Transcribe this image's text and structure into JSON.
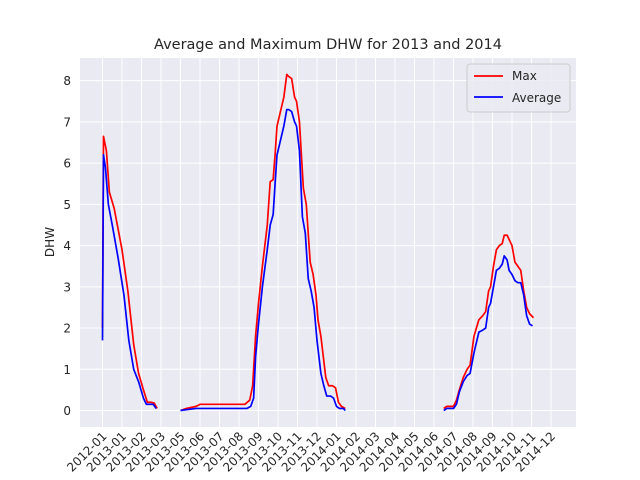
{
  "chart_data": {
    "type": "line",
    "title": "Average and Maximum DHW for 2013 and 2014",
    "xlabel": "",
    "ylabel": "DHW",
    "ylim": [
      -0.4,
      8.55
    ],
    "yticks": [
      0,
      1,
      2,
      3,
      4,
      5,
      6,
      7,
      8
    ],
    "grid": true,
    "legend_position": "top-right",
    "xtick_labels": [
      "2012-01",
      "2013-01",
      "2013-02",
      "2013-03",
      "2013-05",
      "2013-06",
      "2013-07",
      "2013-08",
      "2013-09",
      "2013-10",
      "2013-11",
      "2013-12",
      "2014-01",
      "2014-02",
      "2014-03",
      "2014-04",
      "2014-05",
      "2014-06",
      "2014-07",
      "2014-08",
      "2014-09",
      "2014-10",
      "2014-11",
      "2014-12"
    ],
    "series": [
      {
        "name": "Max",
        "color": "#ff0000",
        "segments": [
          [
            [
              0,
              2.0
            ],
            [
              0.05,
              6.65
            ],
            [
              0.2,
              6.3
            ],
            [
              0.35,
              5.3
            ],
            [
              0.6,
              4.9
            ],
            [
              1.0,
              3.9
            ],
            [
              1.3,
              2.9
            ],
            [
              1.6,
              1.6
            ],
            [
              1.85,
              0.9
            ],
            [
              2.1,
              0.5
            ],
            [
              2.3,
              0.2
            ],
            [
              2.5,
              0.2
            ],
            [
              2.65,
              0.18
            ],
            [
              2.8,
              0.05
            ]
          ],
          [
            [
              4.0,
              0.0
            ],
            [
              4.3,
              0.05
            ],
            [
              4.8,
              0.1
            ],
            [
              5.0,
              0.15
            ],
            [
              5.5,
              0.15
            ],
            [
              6.0,
              0.15
            ],
            [
              6.5,
              0.15
            ],
            [
              7.0,
              0.15
            ],
            [
              7.3,
              0.15
            ],
            [
              7.55,
              0.25
            ],
            [
              7.7,
              0.6
            ],
            [
              7.85,
              1.8
            ],
            [
              8.0,
              2.6
            ],
            [
              8.2,
              3.5
            ],
            [
              8.45,
              4.5
            ],
            [
              8.6,
              5.55
            ],
            [
              8.75,
              5.6
            ],
            [
              8.85,
              6.2
            ],
            [
              8.95,
              6.9
            ],
            [
              9.15,
              7.3
            ],
            [
              9.3,
              7.6
            ],
            [
              9.45,
              8.15
            ],
            [
              9.55,
              8.1
            ],
            [
              9.7,
              8.05
            ],
            [
              9.85,
              7.6
            ],
            [
              9.95,
              7.5
            ],
            [
              10.1,
              7.0
            ],
            [
              10.3,
              5.4
            ],
            [
              10.45,
              5.0
            ],
            [
              10.65,
              3.6
            ],
            [
              10.8,
              3.3
            ],
            [
              10.95,
              2.8
            ],
            [
              11.05,
              2.2
            ],
            [
              11.2,
              1.8
            ],
            [
              11.35,
              1.2
            ],
            [
              11.45,
              0.8
            ],
            [
              11.6,
              0.6
            ],
            [
              11.8,
              0.6
            ],
            [
              11.95,
              0.55
            ],
            [
              12.1,
              0.2
            ],
            [
              12.25,
              0.1
            ],
            [
              12.45,
              0.05
            ]
          ],
          [
            [
              17.5,
              0.05
            ],
            [
              17.65,
              0.1
            ],
            [
              18.0,
              0.1
            ],
            [
              18.15,
              0.25
            ],
            [
              18.3,
              0.5
            ],
            [
              18.5,
              0.8
            ],
            [
              18.7,
              1.0
            ],
            [
              18.85,
              1.1
            ],
            [
              19.05,
              1.8
            ],
            [
              19.3,
              2.2
            ],
            [
              19.5,
              2.3
            ],
            [
              19.65,
              2.4
            ],
            [
              19.8,
              2.9
            ],
            [
              19.9,
              3.0
            ],
            [
              20.05,
              3.5
            ],
            [
              20.2,
              3.9
            ],
            [
              20.35,
              4.0
            ],
            [
              20.5,
              4.05
            ],
            [
              20.6,
              4.25
            ],
            [
              20.75,
              4.25
            ],
            [
              20.85,
              4.15
            ],
            [
              21.0,
              4.0
            ],
            [
              21.15,
              3.6
            ],
            [
              21.3,
              3.5
            ],
            [
              21.45,
              3.4
            ],
            [
              21.6,
              2.9
            ],
            [
              21.75,
              2.5
            ],
            [
              21.9,
              2.35
            ],
            [
              22.1,
              2.25
            ]
          ]
        ]
      },
      {
        "name": "Average",
        "color": "#0000ff",
        "segments": [
          [
            [
              0,
              1.7
            ],
            [
              0.05,
              6.2
            ],
            [
              0.15,
              5.9
            ],
            [
              0.3,
              5.0
            ],
            [
              0.5,
              4.5
            ],
            [
              0.8,
              3.7
            ],
            [
              1.1,
              2.8
            ],
            [
              1.35,
              1.7
            ],
            [
              1.6,
              1.0
            ],
            [
              1.85,
              0.7
            ],
            [
              2.1,
              0.3
            ],
            [
              2.25,
              0.15
            ],
            [
              2.45,
              0.15
            ],
            [
              2.6,
              0.15
            ],
            [
              2.75,
              0.05
            ]
          ],
          [
            [
              4.0,
              0.0
            ],
            [
              4.3,
              0.02
            ],
            [
              4.8,
              0.05
            ],
            [
              5.0,
              0.05
            ],
            [
              5.5,
              0.05
            ],
            [
              6.0,
              0.05
            ],
            [
              6.5,
              0.05
            ],
            [
              7.0,
              0.05
            ],
            [
              7.4,
              0.05
            ],
            [
              7.6,
              0.1
            ],
            [
              7.75,
              0.3
            ],
            [
              7.85,
              1.3
            ],
            [
              8.0,
              2.1
            ],
            [
              8.2,
              3.0
            ],
            [
              8.45,
              3.9
            ],
            [
              8.6,
              4.5
            ],
            [
              8.75,
              4.75
            ],
            [
              8.85,
              5.5
            ],
            [
              8.95,
              6.2
            ],
            [
              9.15,
              6.6
            ],
            [
              9.3,
              6.9
            ],
            [
              9.45,
              7.3
            ],
            [
              9.55,
              7.3
            ],
            [
              9.7,
              7.25
            ],
            [
              9.85,
              7.0
            ],
            [
              9.95,
              6.9
            ],
            [
              10.1,
              6.3
            ],
            [
              10.25,
              4.7
            ],
            [
              10.4,
              4.3
            ],
            [
              10.55,
              3.2
            ],
            [
              10.7,
              2.9
            ],
            [
              10.85,
              2.5
            ],
            [
              11.0,
              1.7
            ],
            [
              11.1,
              1.3
            ],
            [
              11.2,
              0.9
            ],
            [
              11.35,
              0.6
            ],
            [
              11.5,
              0.35
            ],
            [
              11.7,
              0.35
            ],
            [
              11.85,
              0.3
            ],
            [
              12.0,
              0.1
            ],
            [
              12.15,
              0.05
            ],
            [
              12.35,
              0.05
            ],
            [
              12.45,
              0.0
            ]
          ],
          [
            [
              17.5,
              0.0
            ],
            [
              17.65,
              0.05
            ],
            [
              18.0,
              0.05
            ],
            [
              18.15,
              0.15
            ],
            [
              18.3,
              0.45
            ],
            [
              18.5,
              0.7
            ],
            [
              18.7,
              0.85
            ],
            [
              18.85,
              0.9
            ],
            [
              19.05,
              1.4
            ],
            [
              19.3,
              1.9
            ],
            [
              19.5,
              1.95
            ],
            [
              19.65,
              2.0
            ],
            [
              19.8,
              2.5
            ],
            [
              19.9,
              2.6
            ],
            [
              20.05,
              3.0
            ],
            [
              20.2,
              3.4
            ],
            [
              20.35,
              3.45
            ],
            [
              20.5,
              3.55
            ],
            [
              20.6,
              3.75
            ],
            [
              20.75,
              3.65
            ],
            [
              20.85,
              3.4
            ],
            [
              21.0,
              3.3
            ],
            [
              21.15,
              3.15
            ],
            [
              21.3,
              3.1
            ],
            [
              21.45,
              3.1
            ],
            [
              21.6,
              2.8
            ],
            [
              21.75,
              2.3
            ],
            [
              21.9,
              2.1
            ],
            [
              22.05,
              2.05
            ]
          ]
        ]
      }
    ]
  }
}
